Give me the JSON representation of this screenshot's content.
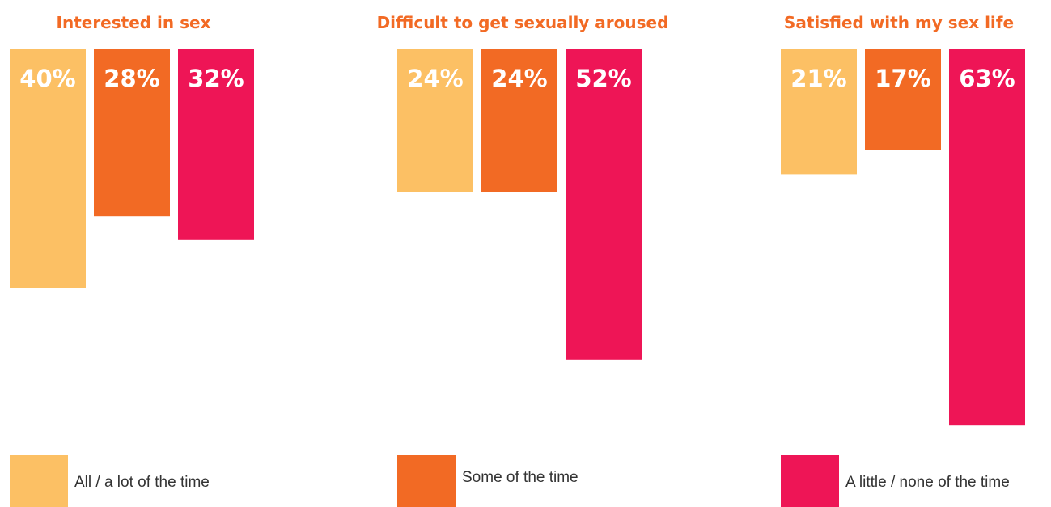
{
  "chart_data": [
    {
      "type": "bar",
      "orientation": "vertical-downward",
      "title": "Interested in sex",
      "categories": [
        "All / a lot of the time",
        "Some of the time",
        "A little / none of the time"
      ],
      "values": [
        40,
        28,
        32
      ],
      "value_labels": [
        "40%",
        "28%",
        "32%"
      ],
      "ylim": [
        0,
        63
      ]
    },
    {
      "type": "bar",
      "orientation": "vertical-downward",
      "title": "Difficult to get sexually aroused",
      "categories": [
        "All / a lot of the time",
        "Some of the time",
        "A little / none of the time"
      ],
      "values": [
        24,
        24,
        52
      ],
      "value_labels": [
        "24%",
        "24%",
        "52%"
      ],
      "ylim": [
        0,
        63
      ]
    },
    {
      "type": "bar",
      "orientation": "vertical-downward",
      "title": "Satisfied with my sex life",
      "categories": [
        "All / a lot of the time",
        "Some of the time",
        "A little / none of the time"
      ],
      "values": [
        21,
        17,
        63
      ],
      "value_labels": [
        "21%",
        "17%",
        "63%"
      ],
      "ylim": [
        0,
        63
      ]
    }
  ],
  "legend": {
    "placement": "bottom",
    "items": [
      {
        "label": "All / a lot of the time",
        "color": "#FCC064"
      },
      {
        "label": "Some of the time",
        "color": "#F26A24"
      },
      {
        "label": "A little / none of the time",
        "color": "#EE1556"
      }
    ]
  },
  "colors": {
    "title": "#F26A24",
    "bar_label": "#FFFFFF"
  }
}
